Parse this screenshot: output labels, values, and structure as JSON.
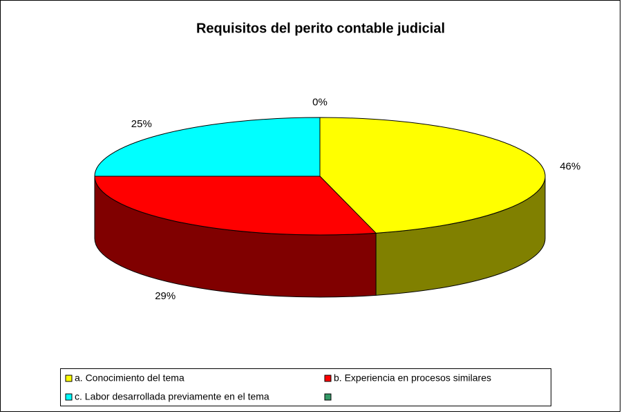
{
  "chart_data": {
    "type": "pie",
    "title": "Requisitos del perito contable judicial",
    "categories": [
      "a. Conocimiento del tema",
      "b. Experiencia en procesos similares",
      "c. Labor desarrollada previamente en el tema",
      null
    ],
    "values": [
      46,
      29,
      25,
      0
    ],
    "value_labels": [
      "46%",
      "29%",
      "25%",
      "0%"
    ],
    "colors": [
      "#ffff00",
      "#ff0000",
      "#00ffff",
      "#339966"
    ],
    "legend": "bottom"
  }
}
